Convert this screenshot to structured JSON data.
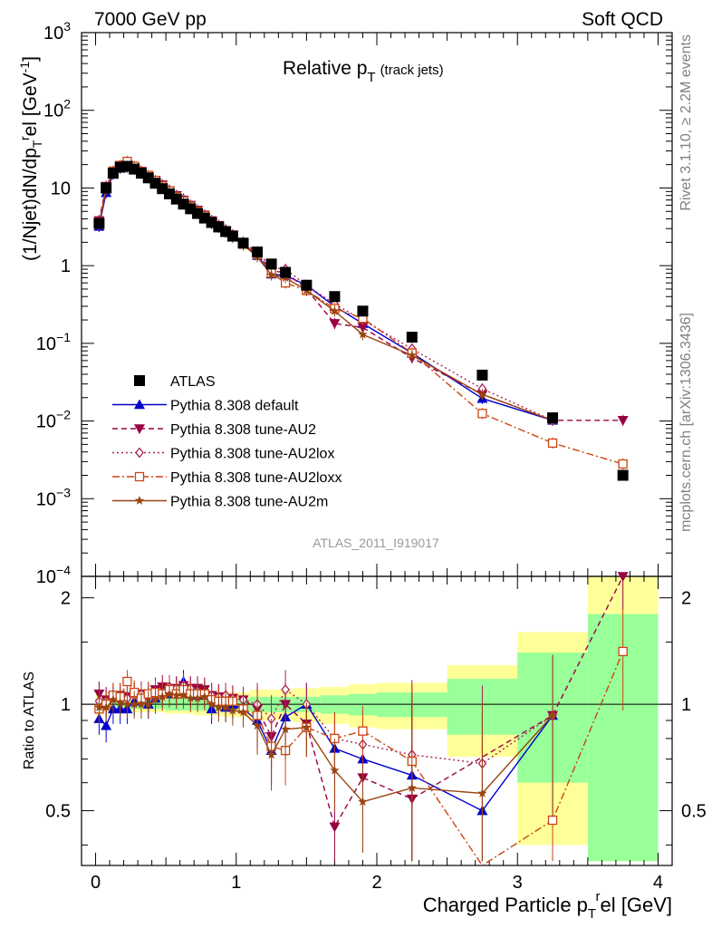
{
  "header": {
    "left": "7000 GeV pp",
    "right": "Soft QCD"
  },
  "side_labels": {
    "rivet": "Rivet 3.1.10, ≥ 2.2M events",
    "mcplots": "mcplots.cern.ch [arXiv:1306.3436]"
  },
  "chart_data": {
    "type": "scatter",
    "title_main": "Relative p",
    "title_sub": "T",
    "title_note": "(track jets)",
    "watermark": "ATLAS_2011_I919017",
    "ylabel": "(1/Njet)dN/dp",
    "ylabel_sub": "T",
    "ylabel_sup": "r",
    "ylabel_tail": "el [GeV",
    "ylabel_exp": "-1",
    "ylabel_close": "]",
    "ratio_ylabel": "Ratio to ATLAS",
    "xlabel": "Charged Particle p",
    "xlabel_sub": "T",
    "xlabel_sup": "r",
    "xlabel_tail": "el [GeV]",
    "xlim": [
      -0.1,
      4.1
    ],
    "ylim": [
      0.0001,
      1000
    ],
    "yscale": "log",
    "ratio_ylim": [
      0.35,
      2.3
    ],
    "x_ticks": [
      "0",
      "1",
      "2",
      "3",
      "4"
    ],
    "y_ticks_main": [
      {
        "base": "10",
        "exp": "3"
      },
      {
        "base": "10",
        "exp": "2"
      },
      {
        "base": "10",
        "exp": ""
      },
      {
        "base": "1",
        "exp": ""
      },
      {
        "base": "10",
        "exp": "−1"
      },
      {
        "base": "10",
        "exp": "−2"
      },
      {
        "base": "10",
        "exp": "−3"
      },
      {
        "base": "10",
        "exp": "−4"
      }
    ],
    "y_ticks_ratio": [
      "2",
      "1",
      "0.5"
    ],
    "legend_position": "bottom-left",
    "x": [
      0.025,
      0.075,
      0.125,
      0.175,
      0.225,
      0.275,
      0.325,
      0.375,
      0.425,
      0.475,
      0.525,
      0.575,
      0.625,
      0.675,
      0.725,
      0.775,
      0.825,
      0.875,
      0.925,
      0.975,
      1.05,
      1.15,
      1.25,
      1.35,
      1.5,
      1.7,
      1.9,
      2.25,
      2.75,
      3.25,
      3.75
    ],
    "data": {
      "name": "ATLAS",
      "values": [
        3.5,
        10.0,
        15.5,
        18.5,
        19.0,
        17.5,
        15.5,
        13.5,
        11.5,
        9.8,
        8.4,
        7.2,
        6.2,
        5.4,
        4.7,
        4.1,
        3.6,
        3.15,
        2.75,
        2.4,
        1.95,
        1.5,
        1.05,
        0.82,
        0.56,
        0.4,
        0.26,
        0.12,
        0.039,
        0.011,
        0.002
      ]
    },
    "series": [
      {
        "name": "Pythia 8.308 default",
        "color": "#0000cc",
        "marker": "triangle-up",
        "style": "solid",
        "values": [
          3.2,
          8.7,
          15.0,
          18.0,
          18.5,
          17.8,
          16.0,
          13.5,
          12.0,
          10.5,
          9.0,
          7.9,
          7.2,
          5.8,
          5.0,
          4.4,
          3.5,
          3.2,
          2.7,
          2.4,
          1.9,
          1.35,
          0.78,
          0.75,
          0.56,
          0.3,
          0.18,
          0.075,
          0.0195,
          0.0102,
          null
        ],
        "ratio": [
          0.91,
          0.87,
          0.97,
          0.97,
          0.97,
          1.02,
          1.03,
          1.0,
          1.04,
          1.07,
          1.07,
          1.1,
          1.16,
          1.07,
          1.06,
          1.07,
          0.97,
          1.02,
          0.98,
          1.0,
          0.97,
          0.9,
          0.74,
          0.92,
          1.0,
          0.75,
          0.7,
          0.63,
          0.5,
          0.93,
          null
        ]
      },
      {
        "name": "Pythia 8.308 tune-AU2",
        "color": "#990044",
        "marker": "triangle-down",
        "style": "dashed",
        "values": [
          3.8,
          10.5,
          16.0,
          19.5,
          20.0,
          18.5,
          16.5,
          14.0,
          12.5,
          11.0,
          9.2,
          8.0,
          7.0,
          6.0,
          5.2,
          4.5,
          3.8,
          3.3,
          2.8,
          2.5,
          2.0,
          1.45,
          0.85,
          0.82,
          0.5,
          0.18,
          0.16,
          0.065,
          0.022,
          0.0102,
          0.0102
        ],
        "ratio": [
          1.07,
          1.03,
          1.05,
          1.06,
          1.05,
          1.06,
          1.07,
          1.04,
          1.1,
          1.12,
          1.1,
          1.11,
          1.13,
          1.11,
          1.11,
          1.1,
          1.06,
          1.05,
          1.02,
          1.04,
          1.03,
          0.97,
          0.81,
          1.0,
          0.88,
          0.45,
          0.62,
          0.54,
          null,
          0.93,
          2.3
        ]
      },
      {
        "name": "Pythia 8.308 tune-AU2lox",
        "color": "#aa2255",
        "marker": "diamond-open",
        "style": "dotted",
        "values": [
          3.6,
          10.2,
          16.2,
          19.0,
          19.8,
          18.5,
          16.5,
          14.2,
          12.2,
          10.6,
          9.4,
          8.0,
          7.0,
          6.0,
          5.1,
          4.4,
          3.8,
          3.3,
          2.9,
          2.5,
          2.0,
          1.5,
          0.95,
          0.9,
          0.56,
          0.32,
          0.2,
          0.085,
          0.026,
          0.0102,
          null
        ],
        "ratio": [
          1.02,
          1.02,
          1.06,
          1.03,
          1.04,
          1.06,
          1.07,
          1.06,
          1.06,
          1.08,
          1.12,
          1.11,
          1.13,
          1.11,
          1.09,
          1.07,
          1.06,
          1.05,
          1.06,
          1.04,
          1.03,
          1.0,
          0.91,
          1.1,
          1.0,
          0.8,
          0.77,
          0.72,
          0.68,
          0.93,
          null
        ]
      },
      {
        "name": "Pythia 8.308 tune-AU2loxx",
        "color": "#cc4411",
        "marker": "square-open",
        "style": "dashdot",
        "values": [
          3.4,
          9.8,
          16.5,
          19.5,
          22.0,
          19.0,
          16.2,
          14.5,
          12.5,
          10.6,
          9.2,
          7.7,
          6.8,
          5.8,
          5.0,
          4.4,
          3.7,
          3.2,
          2.8,
          2.45,
          1.9,
          1.4,
          0.8,
          0.6,
          0.48,
          0.28,
          0.21,
          0.075,
          0.0125,
          0.0052,
          0.0028
        ],
        "ratio": [
          0.97,
          1.0,
          1.06,
          1.05,
          1.16,
          1.08,
          1.04,
          1.07,
          1.08,
          1.07,
          1.1,
          1.07,
          1.1,
          1.07,
          1.07,
          1.07,
          1.03,
          1.02,
          1.02,
          1.02,
          0.97,
          0.93,
          0.76,
          0.74,
          0.86,
          0.8,
          0.84,
          0.69,
          0.32,
          0.47,
          1.41
        ]
      },
      {
        "name": "Pythia 8.308 tune-AU2m",
        "color": "#994411",
        "marker": "star",
        "style": "solid",
        "values": [
          3.3,
          9.5,
          16.0,
          19.0,
          19.0,
          17.5,
          15.5,
          13.5,
          11.8,
          10.3,
          9.0,
          7.6,
          6.6,
          5.6,
          4.9,
          4.3,
          3.6,
          3.1,
          2.7,
          2.3,
          1.85,
          1.3,
          0.76,
          0.7,
          0.48,
          0.26,
          0.13,
          0.07,
          0.022,
          0.0102,
          null
        ],
        "ratio": [
          0.98,
          0.98,
          1.03,
          1.01,
          1.0,
          1.0,
          1.0,
          1.0,
          1.03,
          1.05,
          1.07,
          1.06,
          1.06,
          1.04,
          1.04,
          1.05,
          1.0,
          0.98,
          0.98,
          0.96,
          0.95,
          0.87,
          0.72,
          0.85,
          0.86,
          0.65,
          0.53,
          0.58,
          0.56,
          0.93,
          null
        ]
      }
    ],
    "ratio_bands": [
      {
        "x0": 0.0,
        "x1": 0.05,
        "green": 0.04,
        "yellow": 0.07
      },
      {
        "x0": 0.05,
        "x1": 0.5,
        "green": 0.03,
        "yellow": 0.05
      },
      {
        "x0": 0.5,
        "x1": 0.7,
        "green": 0.04,
        "yellow": 0.06
      },
      {
        "x0": 0.7,
        "x1": 0.9,
        "green": 0.04,
        "yellow": 0.07
      },
      {
        "x0": 0.9,
        "x1": 1.1,
        "green": 0.04,
        "yellow": 0.08
      },
      {
        "x0": 1.1,
        "x1": 1.4,
        "green": 0.05,
        "yellow": 0.1
      },
      {
        "x0": 1.4,
        "x1": 1.6,
        "green": 0.05,
        "yellow": 0.11
      },
      {
        "x0": 1.6,
        "x1": 1.8,
        "green": 0.06,
        "yellow": 0.12
      },
      {
        "x0": 1.8,
        "x1": 2.0,
        "green": 0.07,
        "yellow": 0.14
      },
      {
        "x0": 2.0,
        "x1": 2.5,
        "green": 0.08,
        "yellow": 0.15
      },
      {
        "x0": 2.5,
        "x1": 3.0,
        "green": 0.18,
        "yellow": 0.29
      },
      {
        "x0": 3.0,
        "x1": 3.5,
        "green": 0.4,
        "yellow": 0.6
      },
      {
        "x0": 3.5,
        "x1": 4.0,
        "green": 0.8,
        "yellow": 1.3
      }
    ]
  }
}
